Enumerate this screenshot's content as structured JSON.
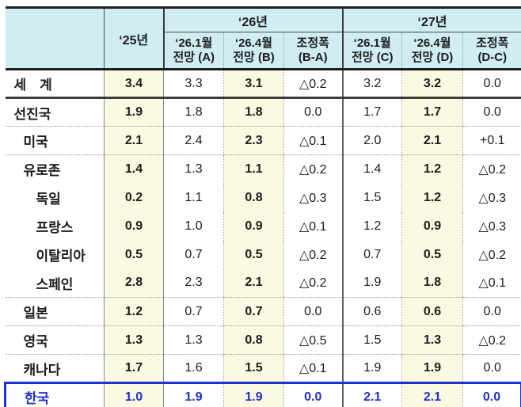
{
  "colors": {
    "header_bg": "#d0edf4",
    "highlight_col_bg": "#fafae2",
    "korea_accent": "#1e2fd0",
    "dark_border": "#1f1f1f"
  },
  "chart_data": {
    "type": "table",
    "header": {
      "corner": "",
      "year25": "‘25년",
      "groups": [
        {
          "label": "‘26년",
          "subcols": [
            "‘26.1월\n전망 (A)",
            "‘26.4월\n전망 (B)",
            "조정폭\n(B-A)"
          ]
        },
        {
          "label": "‘27년",
          "subcols": [
            "‘26.1월\n전망 (C)",
            "‘26.4월\n전망 (D)",
            "조정폭\n(D-C)"
          ]
        }
      ]
    },
    "rows": [
      {
        "label": "세　계",
        "indent": 0,
        "sep": "thick",
        "values": {
          "y25": "3.4",
          "a": "3.3",
          "b": "3.1",
          "ba": "△0.2",
          "c": "3.2",
          "d": "3.2",
          "dc": "0.0"
        }
      },
      {
        "label": "선진국",
        "indent": 0,
        "sep": "dotted",
        "values": {
          "y25": "1.9",
          "a": "1.8",
          "b": "1.8",
          "ba": "0.0",
          "c": "1.7",
          "d": "1.7",
          "dc": "0.0"
        }
      },
      {
        "label": "미국",
        "indent": 1,
        "sep": "dotted",
        "values": {
          "y25": "2.1",
          "a": "2.4",
          "b": "2.3",
          "ba": "△0.1",
          "c": "2.0",
          "d": "2.1",
          "dc": "+0.1"
        }
      },
      {
        "label": "유로존",
        "indent": 1,
        "sep": "none",
        "values": {
          "y25": "1.4",
          "a": "1.3",
          "b": "1.1",
          "ba": "△0.2",
          "c": "1.4",
          "d": "1.2",
          "dc": "△0.2"
        }
      },
      {
        "label": "독일",
        "indent": 2,
        "sep": "none",
        "values": {
          "y25": "0.2",
          "a": "1.1",
          "b": "0.8",
          "ba": "△0.3",
          "c": "1.5",
          "d": "1.2",
          "dc": "△0.3"
        }
      },
      {
        "label": "프랑스",
        "indent": 2,
        "sep": "none",
        "values": {
          "y25": "0.9",
          "a": "1.0",
          "b": "0.9",
          "ba": "△0.1",
          "c": "1.2",
          "d": "0.9",
          "dc": "△0.3"
        }
      },
      {
        "label": "이탈리아",
        "indent": 2,
        "sep": "none",
        "values": {
          "y25": "0.5",
          "a": "0.7",
          "b": "0.5",
          "ba": "△0.2",
          "c": "0.7",
          "d": "0.5",
          "dc": "△0.2"
        }
      },
      {
        "label": "스페인",
        "indent": 2,
        "sep": "dotted",
        "values": {
          "y25": "2.8",
          "a": "2.3",
          "b": "2.1",
          "ba": "△0.2",
          "c": "1.9",
          "d": "1.8",
          "dc": "△0.1"
        }
      },
      {
        "label": "일본",
        "indent": 1,
        "sep": "dotted",
        "values": {
          "y25": "1.2",
          "a": "0.7",
          "b": "0.7",
          "ba": "0.0",
          "c": "0.6",
          "d": "0.6",
          "dc": "0.0"
        }
      },
      {
        "label": "영국",
        "indent": 1,
        "sep": "dotted",
        "values": {
          "y25": "1.3",
          "a": "1.3",
          "b": "0.8",
          "ba": "△0.5",
          "c": "1.5",
          "d": "1.3",
          "dc": "△0.2"
        }
      },
      {
        "label": "캐나다",
        "indent": 1,
        "sep": "dotted",
        "values": {
          "y25": "1.7",
          "a": "1.6",
          "b": "1.5",
          "ba": "△0.1",
          "c": "1.9",
          "d": "1.9",
          "dc": "0.0"
        }
      },
      {
        "label": "한국",
        "indent": 1,
        "sep": "none",
        "korea": true,
        "values": {
          "y25": "1.0",
          "a": "1.9",
          "b": "1.9",
          "ba": "0.0",
          "c": "2.1",
          "d": "2.1",
          "dc": "0.0"
        }
      }
    ]
  }
}
